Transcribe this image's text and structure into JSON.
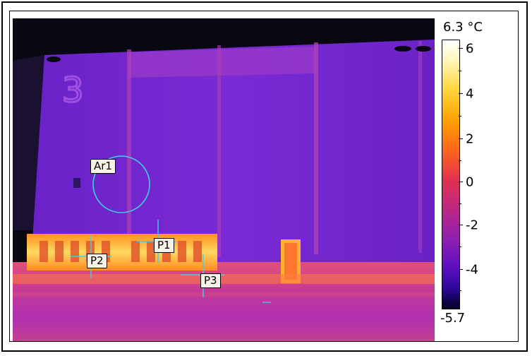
{
  "colorbar": {
    "max_label": "6.3 °C",
    "min_label": "-5.7",
    "ticks": [
      "6",
      "4",
      "2",
      "0",
      "-2",
      "-4"
    ]
  },
  "markers": {
    "area": "Ar1",
    "points": [
      "P1",
      "P2",
      "P3"
    ]
  },
  "colors": {
    "marker": "#3fd0e8",
    "label_bg": "#f6f3e6",
    "sky": "#0a0a16",
    "wall": "#7a2fd0",
    "hot": "#ffcf3a"
  }
}
